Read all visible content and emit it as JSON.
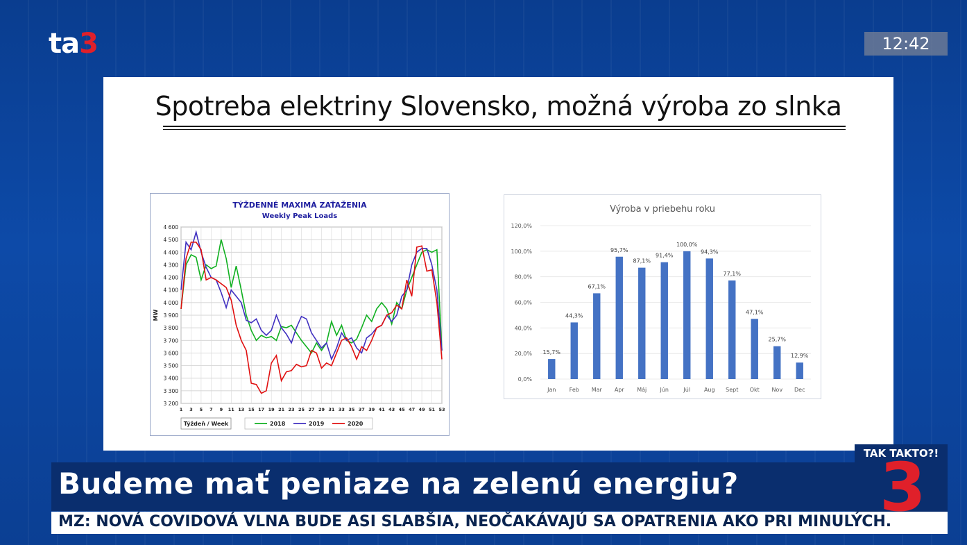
{
  "broadcast": {
    "logo_text": "ta",
    "logo_num": "3",
    "clock": "12:42",
    "headline": "Budeme mať  peniaze na zelenú energiu?",
    "ticker": "MZ: NOVÁ COVIDOVÁ VLNA BUDE ASI SLABŠIA, NEOČAKÁVAJÚ SA OPATRENIA AKO PRI MINULÝCH.",
    "badge_label": "TAK TAKTO?!",
    "badge_num": "3",
    "colors": {
      "accent_red": "#e0202a",
      "bar_blue": "#0a2e6e"
    }
  },
  "slide": {
    "title": "Spotreba elektriny Slovensko, možná výroba zo slnka"
  },
  "chart_data": [
    {
      "type": "line",
      "title": "TÝŽDENNÉ MAXIMÁ ZAŤAŽENIA",
      "subtitle": "Weekly Peak Loads",
      "ylabel": "MW",
      "ylim": [
        3200,
        4600
      ],
      "yticks": [
        "4 600",
        "4 500",
        "4 400",
        "4 300",
        "4 200",
        "4 100",
        "4 000",
        "3 900",
        "3 800",
        "3 700",
        "3 600",
        "3 500",
        "3 400",
        "3 300",
        "3 200"
      ],
      "xticks": [
        "1",
        "3",
        "5",
        "7",
        "9",
        "11",
        "13",
        "15",
        "17",
        "19",
        "21",
        "23",
        "25",
        "27",
        "29",
        "31",
        "33",
        "35",
        "37",
        "39",
        "41",
        "43",
        "45",
        "47",
        "49",
        "51",
        "53"
      ],
      "legend_caption": "Týždeň / Week",
      "grid": true,
      "x": [
        1,
        2,
        3,
        4,
        5,
        6,
        7,
        8,
        9,
        10,
        11,
        12,
        13,
        14,
        15,
        16,
        17,
        18,
        19,
        20,
        21,
        22,
        23,
        24,
        25,
        26,
        27,
        28,
        29,
        30,
        31,
        32,
        33,
        34,
        35,
        36,
        37,
        38,
        39,
        40,
        41,
        42,
        43,
        44,
        45,
        46,
        47,
        48,
        49,
        50,
        51,
        52,
        53
      ],
      "series": [
        {
          "name": "2018",
          "color": "#10b020",
          "values": [
            3950,
            4300,
            4380,
            4360,
            4180,
            4300,
            4270,
            4290,
            4500,
            4350,
            4120,
            4290,
            4100,
            3900,
            3780,
            3700,
            3740,
            3720,
            3730,
            3700,
            3810,
            3800,
            3820,
            3760,
            3700,
            3650,
            3600,
            3680,
            3620,
            3680,
            3850,
            3740,
            3820,
            3700,
            3680,
            3710,
            3800,
            3900,
            3850,
            3950,
            4000,
            3950,
            3830,
            4000,
            3950,
            4100,
            4200,
            4300,
            4400,
            4420,
            4400,
            4420,
            3620
          ]
        },
        {
          "name": "2019",
          "color": "#4030c0",
          "values": [
            4100,
            4480,
            4420,
            4560,
            4400,
            4280,
            4200,
            4180,
            4080,
            3960,
            4100,
            4050,
            4000,
            3860,
            3840,
            3870,
            3780,
            3740,
            3780,
            3900,
            3800,
            3750,
            3680,
            3800,
            3890,
            3870,
            3760,
            3700,
            3640,
            3680,
            3550,
            3640,
            3760,
            3700,
            3720,
            3640,
            3600,
            3720,
            3750,
            3800,
            3820,
            3900,
            3850,
            3900,
            4050,
            4100,
            4300,
            4400,
            4430,
            4430,
            4300,
            4100,
            3620
          ]
        },
        {
          "name": "2020",
          "color": "#e01010",
          "values": [
            3950,
            4350,
            4480,
            4480,
            4420,
            4180,
            4200,
            4180,
            4150,
            4120,
            4020,
            3820,
            3700,
            3620,
            3360,
            3350,
            3280,
            3300,
            3520,
            3580,
            3380,
            3450,
            3460,
            3510,
            3490,
            3500,
            3620,
            3600,
            3480,
            3520,
            3500,
            3600,
            3700,
            3720,
            3650,
            3550,
            3650,
            3620,
            3700,
            3800,
            3820,
            3900,
            3920,
            3980,
            3950,
            4180,
            4050,
            4440,
            4450,
            4250,
            4260,
            4000,
            3550
          ]
        }
      ]
    },
    {
      "type": "bar",
      "title": "Výroba v priebehu roku",
      "categories": [
        "Jan",
        "Feb",
        "Mar",
        "Apr",
        "Máj",
        "Jún",
        "Júl",
        "Aug",
        "Sept",
        "Okt",
        "Nov",
        "Dec"
      ],
      "values": [
        15.7,
        44.3,
        67.1,
        95.7,
        87.1,
        91.4,
        100.0,
        94.3,
        77.1,
        47.1,
        25.7,
        12.9
      ],
      "value_labels": [
        "15,7%",
        "44,3%",
        "67,1%",
        "95,7%",
        "87,1%",
        "91,4%",
        "100,0%",
        "94,3%",
        "77,1%",
        "47,1%",
        "25,7%",
        "12,9%"
      ],
      "yticks": [
        "120,0%",
        "100,0%",
        "80,0%",
        "60,0%",
        "40,0%",
        "20,0%",
        "0,0%"
      ],
      "ylim": [
        0,
        120
      ],
      "color": "#4472c4",
      "grid": true
    }
  ]
}
